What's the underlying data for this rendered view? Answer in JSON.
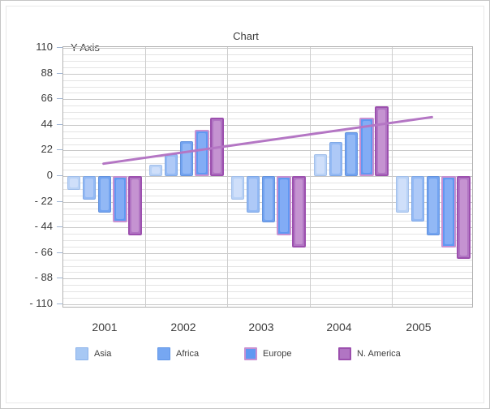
{
  "panel": {
    "background": "#ffffff",
    "border_color": "#c5c5c5"
  },
  "chart_data": {
    "type": "bar",
    "title": "Chart",
    "y_axis_label": "Y Axis",
    "categories": [
      "2001",
      "2002",
      "2003",
      "2004",
      "2005"
    ],
    "ylim": [
      -110,
      110
    ],
    "y_major_unit": 22,
    "y_minor_unit": 5.5,
    "grid": {
      "major_horizontal": true,
      "minor_horizontal": true,
      "vertical_major": true
    },
    "y_ticks": [
      110,
      88,
      66,
      44,
      22,
      0,
      -22,
      -44,
      -66,
      -88,
      -110
    ],
    "y_tick_labels": [
      "110",
      "88",
      "66",
      "44",
      "22",
      "0",
      "- 22",
      "- 44",
      "- 66",
      "- 88",
      "- 110"
    ],
    "series": [
      {
        "name": "Asia",
        "values": [
          -12,
          10,
          -20,
          19,
          -31
        ],
        "fill": "#b9d2f6",
        "border": "#a2bfea",
        "highlight": "#cfdffa"
      },
      {
        "name": "",
        "values": [
          -20,
          19,
          -31,
          29,
          -39
        ],
        "fill": "#93b9f4",
        "border": "#7fa8e6",
        "highlight": "#aec9f7"
      },
      {
        "name": "Africa",
        "values": [
          -31,
          30,
          -40,
          38,
          -51
        ],
        "fill": "#72a3f0",
        "border": "#6392dd",
        "highlight": "#92b8f5"
      },
      {
        "name": "Europe",
        "values": [
          -40,
          40,
          -51,
          50,
          -61
        ],
        "fill": "#6098f2",
        "border": "#c791d1",
        "highlight": "#82acf5"
      },
      {
        "name": "N. America",
        "values": [
          -51,
          50,
          -61,
          60,
          -71
        ],
        "fill": "#b175c3",
        "border": "#9c50ae",
        "highlight": "#c593d1"
      }
    ],
    "trend_line": {
      "x": [
        "2001",
        "2005"
      ],
      "values": [
        10,
        50
      ],
      "color": "#b476c4"
    },
    "legend": {
      "position": "bottom",
      "items": [
        {
          "label": "Asia",
          "fill": "#a7c8f4",
          "border": "#8cb2ea"
        },
        {
          "label": "Africa",
          "fill": "#76a7f2",
          "border": "#6095e6"
        },
        {
          "label": "Europe",
          "fill": "#6098f2",
          "border": "#c791d1"
        },
        {
          "label": "N. America",
          "fill": "#b175c3",
          "border": "#9c50ae"
        }
      ]
    }
  }
}
